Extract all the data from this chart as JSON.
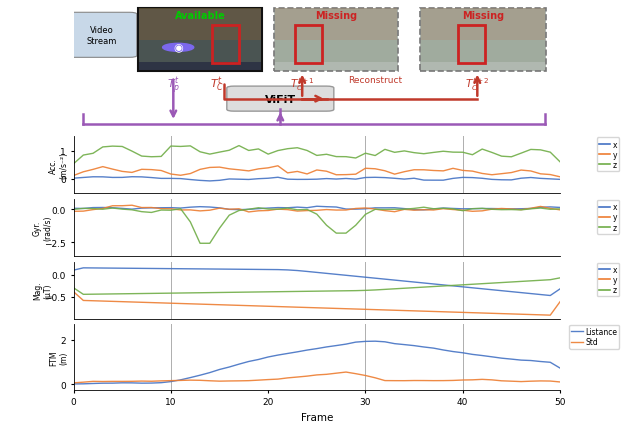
{
  "n_frames": 51,
  "acc_ylim": [
    -0.5,
    1.5
  ],
  "gyr_ylim": [
    -3.5,
    0.75
  ],
  "mag_ylim": [
    -1.0,
    0.3
  ],
  "ftm_ylim": [
    -0.25,
    2.7
  ],
  "acc_yticks": [
    0,
    1
  ],
  "gyr_yticks": [
    -2.5,
    0.0
  ],
  "mag_yticks": [
    -0.5,
    0.0
  ],
  "ftm_yticks": [
    0,
    2
  ],
  "xticks": [
    0,
    10,
    20,
    30,
    40,
    50
  ],
  "color_x": "#4472C4",
  "color_y": "#ED7D31",
  "color_z": "#70AD47",
  "color_blue": "#4472C4",
  "color_orange": "#ED7D31",
  "vline_color": "#999999",
  "vline_positions": [
    10,
    30,
    40
  ],
  "acc_ylabel": "Acc.\n(m/s⁻²)",
  "gyr_ylabel": "Gyr.\n(rad/s)",
  "mag_ylabel": "Mag.\n(μT)",
  "ftm_ylabel": "FTM\n(m)",
  "xlabel": "Frame",
  "legend_ftm": [
    "Listance",
    "Std"
  ],
  "purple": "#9B59B6",
  "dark_red": "#C0392B",
  "vifit_box_color": "#CCCCCC",
  "video_stream_color": "#C8D8E8"
}
